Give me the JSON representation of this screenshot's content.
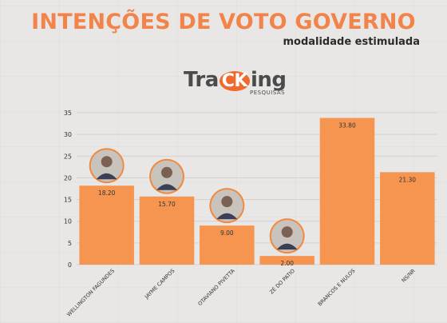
{
  "title": "INTENÇÕES DE VOTO GOVERNO",
  "subtitle": "modalidade estimulada",
  "logo": {
    "text_a": "Tra",
    "text_ck": "CK",
    "text_b": "ing",
    "tagline": "PESQUISAS"
  },
  "colors": {
    "bar": "#f5954f",
    "title": "#f2844b",
    "grid": "#d3d1cf",
    "axis_text": "#333333"
  },
  "chart_data": {
    "type": "bar",
    "categories": [
      "WELLINGTON FAGUNDES",
      "JAYME CAMPOS",
      "OTAVIANO PIVETTA",
      "ZÉ DO PATIO",
      "BRANCOS E NULOS",
      "NS/NR"
    ],
    "values": [
      18.2,
      15.7,
      9.0,
      2.0,
      33.8,
      21.3
    ],
    "value_labels": [
      "18.20",
      "15.70",
      "9.00",
      "2.00",
      "33.80",
      "21.30"
    ],
    "ylim": [
      0,
      35
    ],
    "yticks": [
      0,
      5,
      10,
      15,
      20,
      25,
      30,
      35
    ],
    "grid": true,
    "photos": [
      true,
      true,
      true,
      true,
      false,
      false
    ],
    "xlabel": "",
    "ylabel": ""
  }
}
